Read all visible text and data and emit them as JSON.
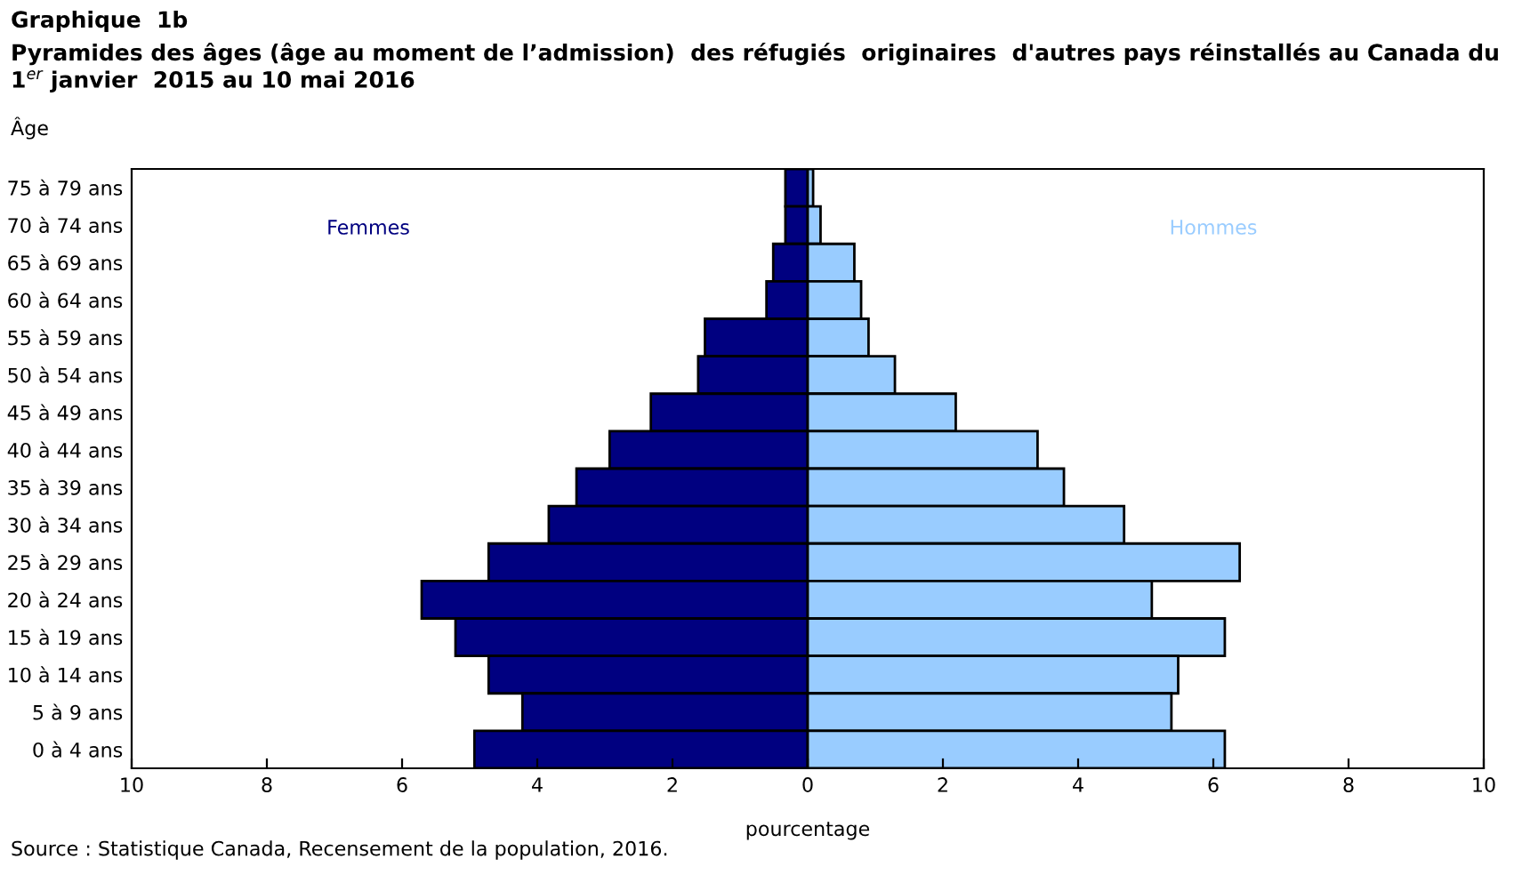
{
  "chart_data": {
    "type": "bar",
    "orientation": "horizontal",
    "stacked": true,
    "title": "Graphique  1b",
    "subtitle": "Pyramides des âges (âge au moment de l’admission)  des réfugiés  originaires  d'autres pays réinstallés au Canada du 1$^{er}$ janvier  2015 au 10 mai 2016",
    "ylabel": "Âge",
    "xlabel": "pourcentage",
    "categories": [
      "75 à 79 ans",
      "70 à 74 ans",
      "65 à 69 ans",
      "60 à 64 ans",
      "55 à 59 ans",
      "50 à 54 ans",
      "45 à 49 ans",
      "40 à 44 ans",
      "35 à 39 ans",
      "30 à 34 ans",
      "25 à 29 ans",
      "20 à 24 ans",
      "15 à 19 ans",
      "10 à 14 ans",
      "5 à 9 ans",
      "0 à 4 ans"
    ],
    "series": [
      {
        "name": "Femmes",
        "color": "#000080",
        "values": [
          -0.33,
          -0.33,
          -0.51,
          -0.61,
          -1.52,
          -1.62,
          -2.32,
          -2.93,
          -3.42,
          -3.83,
          -4.72,
          -5.71,
          -5.21,
          -4.72,
          -4.22,
          -4.93
        ]
      },
      {
        "name": "Hommes",
        "color": "#99ccff",
        "values": [
          0.08,
          0.19,
          0.69,
          0.79,
          0.9,
          1.29,
          2.19,
          3.4,
          3.79,
          4.68,
          6.39,
          5.09,
          6.17,
          5.48,
          5.38,
          6.17
        ]
      }
    ],
    "xlim": [
      -10,
      10
    ],
    "xticks": [
      {
        "value": -10,
        "label": "10"
      },
      {
        "value": -8,
        "label": "8"
      },
      {
        "value": -6,
        "label": "6"
      },
      {
        "value": -4,
        "label": "4"
      },
      {
        "value": -2,
        "label": "2"
      },
      0,
      2,
      4,
      6,
      8,
      10
    ],
    "grid": false,
    "legend": false,
    "annotations": [
      "Source : Statistique Canada, Recensement de la population, 2016."
    ]
  }
}
